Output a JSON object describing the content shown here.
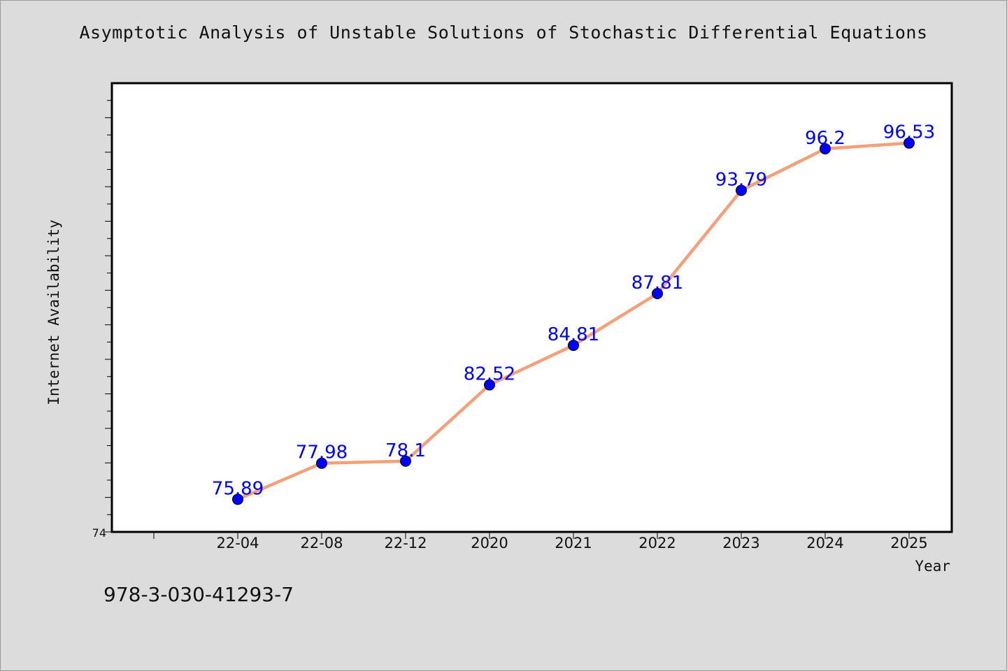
{
  "title": "Asymptotic Analysis of Unstable Solutions of Stochastic Differential Equations",
  "footer_text": "978-3-030-41293-7",
  "chart_data": {
    "type": "line",
    "title": "Asymptotic Analysis of Unstable Solutions of Stochastic Differential Equations",
    "xlabel": "Year",
    "ylabel": "Internet Availability",
    "categories": [
      "22-04",
      "22-08",
      "22-12",
      "2020",
      "2021",
      "2022",
      "2023",
      "2024",
      "2025"
    ],
    "values": [
      75.89,
      77.98,
      78.1,
      82.52,
      84.81,
      87.81,
      93.79,
      96.2,
      96.53
    ],
    "data_labels": [
      "75.89",
      "77.98",
      "78.1",
      "82.52",
      "84.81",
      "87.81",
      "93.79",
      "96.2",
      "96.53"
    ],
    "y_tick_labels": [
      "74"
    ],
    "ylim": [
      74,
      100
    ],
    "line_color": "#f4a07a",
    "marker_color": "#0000ff",
    "label_color": "#0000ff",
    "grid": false,
    "legend": "none"
  }
}
